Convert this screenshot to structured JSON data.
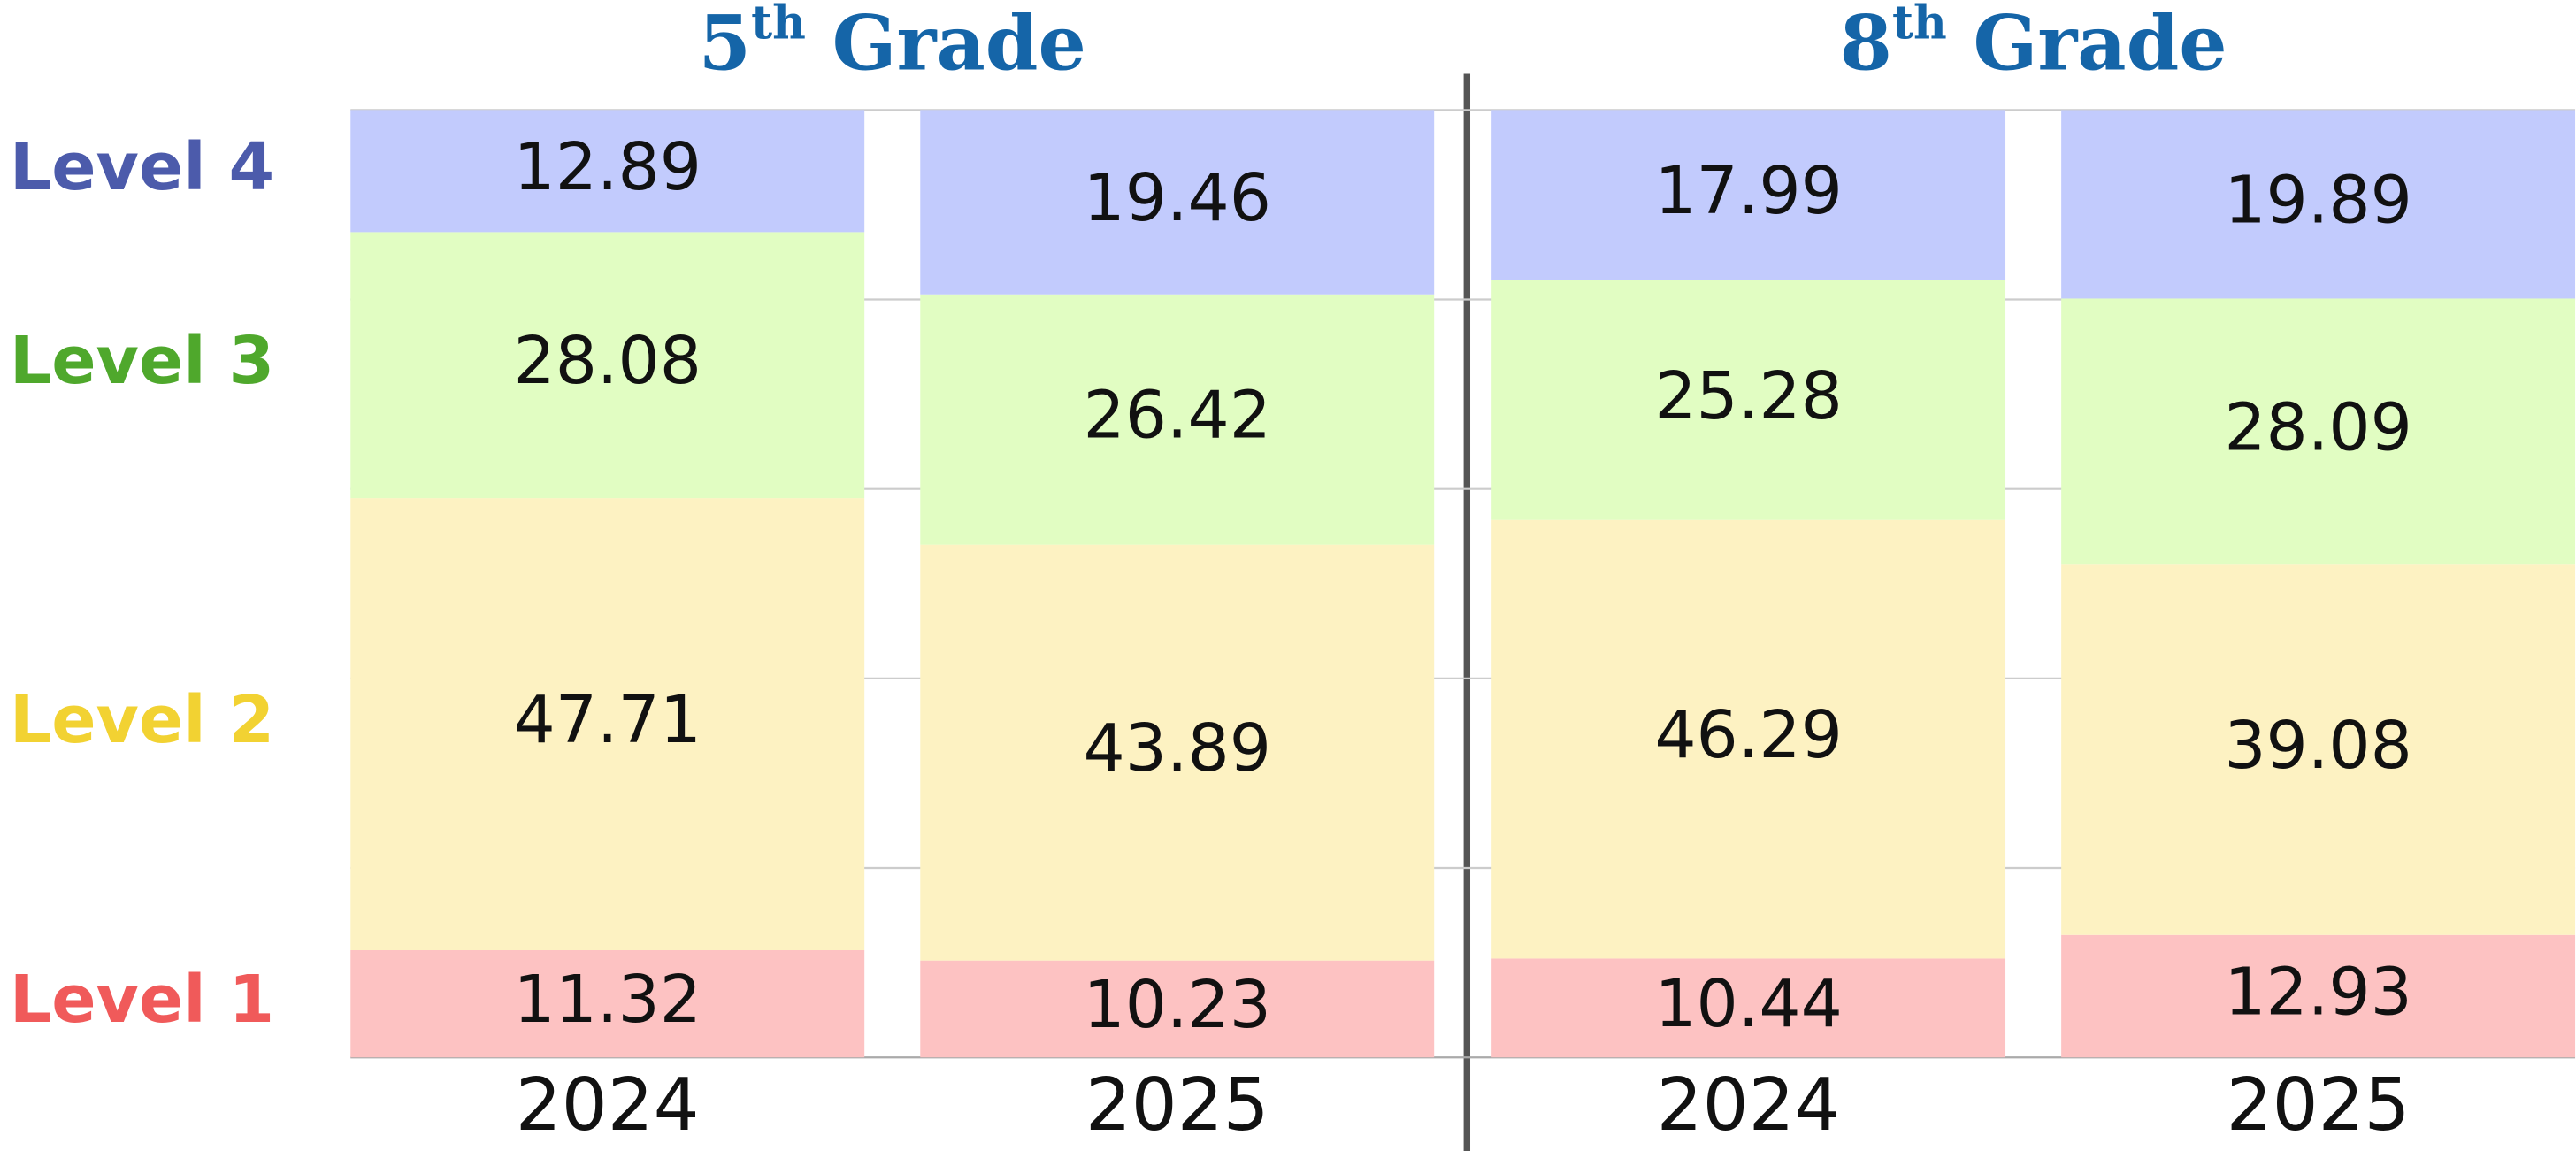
{
  "chart_data": {
    "type": "stacked_bar",
    "group_titles": [
      "5th Grade",
      "8th Grade"
    ],
    "categories": [
      "2024",
      "2025",
      "2024",
      "2025"
    ],
    "series": [
      {
        "name": "Level 1",
        "color": "#fdc2c2",
        "label_color": "#f05a5a",
        "values": [
          11.32,
          10.23,
          10.44,
          12.93
        ]
      },
      {
        "name": "Level 2",
        "color": "#fdf2c2",
        "label_color": "#f2d232",
        "values": [
          47.71,
          43.89,
          46.29,
          39.08
        ]
      },
      {
        "name": "Level 3",
        "color": "#e1fdc2",
        "label_color": "#4fa82c",
        "values": [
          28.08,
          26.42,
          25.28,
          28.09
        ]
      },
      {
        "name": "Level 4",
        "color": "#c2cbfd",
        "label_color": "#4c5bab",
        "values": [
          12.89,
          19.46,
          17.99,
          19.89
        ]
      }
    ],
    "ylim": [
      0,
      100
    ],
    "yticks": [
      0,
      20,
      40,
      60,
      80,
      100
    ],
    "grid": true
  }
}
